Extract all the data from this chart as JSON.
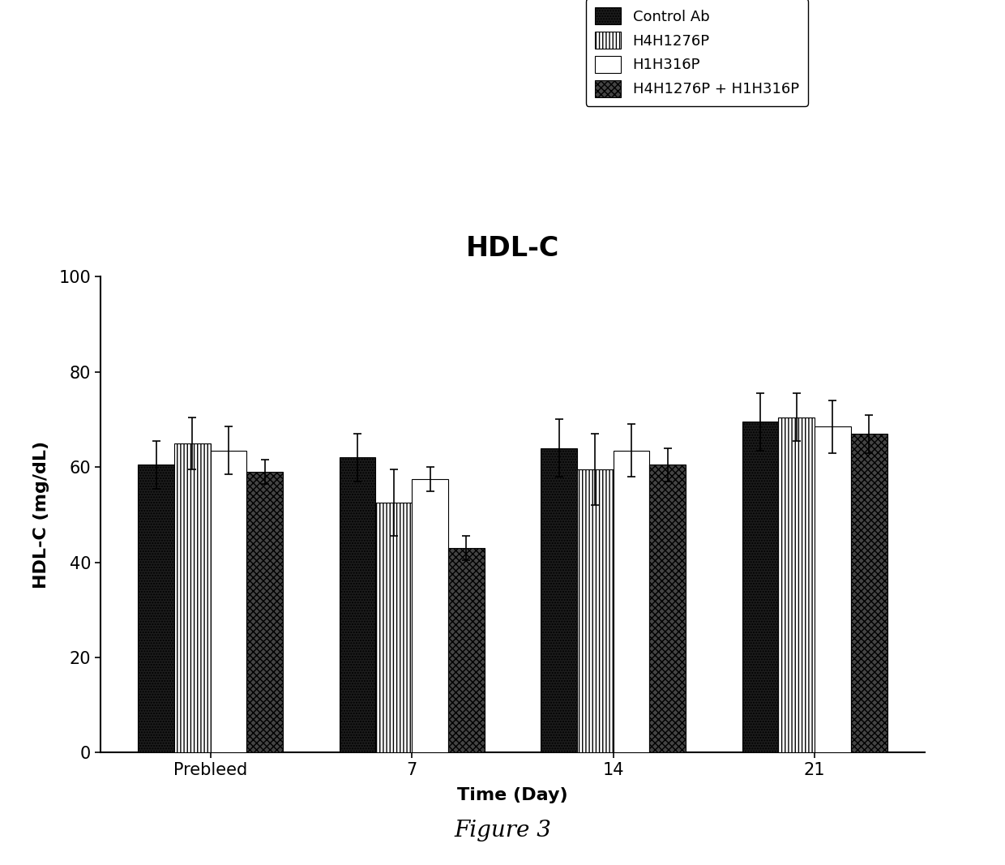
{
  "title": "HDL-C",
  "xlabel": "Time (Day)",
  "ylabel": "HDL-C (mg/dL)",
  "figure_label": "Figure 3",
  "x_labels": [
    "Prebleed",
    "7",
    "14",
    "21"
  ],
  "bar_values": [
    [
      60.5,
      62.0,
      64.0,
      69.5
    ],
    [
      65.0,
      52.5,
      59.5,
      70.5
    ],
    [
      63.5,
      57.5,
      63.5,
      68.5
    ],
    [
      59.0,
      43.0,
      60.5,
      67.0
    ]
  ],
  "bar_errors": [
    [
      5.0,
      5.0,
      6.0,
      6.0
    ],
    [
      5.5,
      7.0,
      7.5,
      5.0
    ],
    [
      5.0,
      2.5,
      5.5,
      5.5
    ],
    [
      2.5,
      2.5,
      3.5,
      4.0
    ]
  ],
  "legend_labels": [
    "Control Ab",
    "H4H1276P",
    "H1H316P",
    "H4H1276P + H1H316P"
  ],
  "ylim": [
    0,
    100
  ],
  "yticks": [
    0,
    20,
    40,
    60,
    80,
    100
  ],
  "background_color": "#ffffff",
  "bar_width": 0.18
}
